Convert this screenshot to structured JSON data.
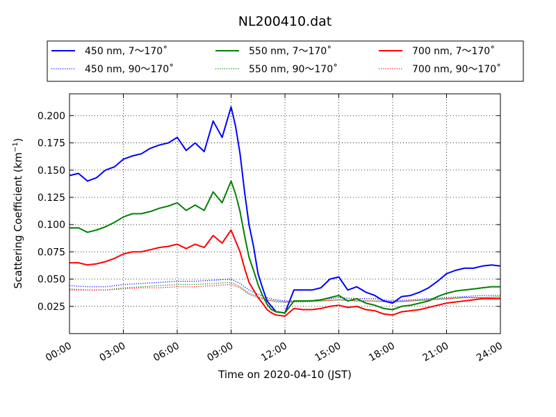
{
  "chart_data": {
    "type": "line",
    "title": "NL200410.dat",
    "xlabel": "Time on 2020-04-10 (JST)",
    "ylabel": "Scattering Coefficient (km",
    "ylabel_sup": "−1",
    "ylabel_close": ")",
    "xlim": [
      "00:00",
      "24:00"
    ],
    "ylim": [
      0.0,
      0.22
    ],
    "x_ticks": [
      "00:00",
      "03:00",
      "06:00",
      "09:00",
      "12:00",
      "15:00",
      "18:00",
      "21:00",
      "24:00"
    ],
    "y_ticks": [
      "0.025",
      "0.050",
      "0.075",
      "0.100",
      "0.125",
      "0.150",
      "0.175",
      "0.200"
    ],
    "grid": true,
    "legend_placement": "top-center",
    "series": [
      {
        "name": "450 nm, 7～170˚",
        "color": "#0000ff",
        "style": "solid",
        "x": [
          "00:00",
          "00:30",
          "01:00",
          "01:30",
          "02:00",
          "02:30",
          "03:00",
          "03:30",
          "04:00",
          "04:30",
          "05:00",
          "05:30",
          "06:00",
          "06:30",
          "07:00",
          "07:30",
          "08:00",
          "08:30",
          "09:00",
          "09:15",
          "09:30",
          "09:45",
          "10:00",
          "10:15",
          "10:30",
          "10:45",
          "11:00",
          "11:15",
          "11:30",
          "12:00",
          "12:30",
          "13:00",
          "13:30",
          "14:00",
          "14:30",
          "15:00",
          "15:30",
          "16:00",
          "16:30",
          "17:00",
          "17:30",
          "18:00",
          "18:30",
          "19:00",
          "19:30",
          "20:00",
          "20:30",
          "21:00",
          "21:30",
          "22:00",
          "22:30",
          "23:00",
          "23:30",
          "24:00"
        ],
        "y": [
          0.145,
          0.147,
          0.14,
          0.143,
          0.15,
          0.153,
          0.16,
          0.163,
          0.165,
          0.17,
          0.173,
          0.175,
          0.18,
          0.168,
          0.175,
          0.167,
          0.195,
          0.18,
          0.208,
          0.19,
          0.165,
          0.13,
          0.1,
          0.08,
          0.055,
          0.042,
          0.03,
          0.025,
          0.02,
          0.019,
          0.04,
          0.04,
          0.04,
          0.042,
          0.05,
          0.052,
          0.04,
          0.043,
          0.038,
          0.035,
          0.03,
          0.028,
          0.034,
          0.035,
          0.038,
          0.042,
          0.048,
          0.055,
          0.058,
          0.06,
          0.06,
          0.062,
          0.063,
          0.062
        ]
      },
      {
        "name": "550 nm, 7～170˚",
        "color": "#008000",
        "style": "solid",
        "x": [
          "00:00",
          "00:30",
          "01:00",
          "01:30",
          "02:00",
          "02:30",
          "03:00",
          "03:30",
          "04:00",
          "04:30",
          "05:00",
          "05:30",
          "06:00",
          "06:30",
          "07:00",
          "07:30",
          "08:00",
          "08:30",
          "09:00",
          "09:15",
          "09:30",
          "09:45",
          "10:00",
          "10:15",
          "10:30",
          "10:45",
          "11:00",
          "11:15",
          "11:30",
          "12:00",
          "12:30",
          "13:00",
          "13:30",
          "14:00",
          "14:30",
          "15:00",
          "15:30",
          "16:00",
          "16:30",
          "17:00",
          "17:30",
          "18:00",
          "18:30",
          "19:00",
          "19:30",
          "20:00",
          "20:30",
          "21:00",
          "21:30",
          "22:00",
          "22:30",
          "23:00",
          "23:30",
          "24:00"
        ],
        "y": [
          0.097,
          0.097,
          0.093,
          0.095,
          0.098,
          0.102,
          0.107,
          0.11,
          0.11,
          0.112,
          0.115,
          0.117,
          0.12,
          0.113,
          0.118,
          0.113,
          0.13,
          0.12,
          0.14,
          0.128,
          0.112,
          0.09,
          0.07,
          0.058,
          0.045,
          0.035,
          0.027,
          0.022,
          0.02,
          0.019,
          0.03,
          0.03,
          0.03,
          0.031,
          0.033,
          0.035,
          0.03,
          0.032,
          0.028,
          0.026,
          0.023,
          0.022,
          0.025,
          0.026,
          0.028,
          0.03,
          0.034,
          0.037,
          0.039,
          0.04,
          0.041,
          0.042,
          0.043,
          0.043
        ]
      },
      {
        "name": "700 nm, 7～170˚",
        "color": "#ff0000",
        "style": "solid",
        "x": [
          "00:00",
          "00:30",
          "01:00",
          "01:30",
          "02:00",
          "02:30",
          "03:00",
          "03:30",
          "04:00",
          "04:30",
          "05:00",
          "05:30",
          "06:00",
          "06:30",
          "07:00",
          "07:30",
          "08:00",
          "08:30",
          "09:00",
          "09:15",
          "09:30",
          "09:45",
          "10:00",
          "10:15",
          "10:30",
          "10:45",
          "11:00",
          "11:15",
          "11:30",
          "12:00",
          "12:30",
          "13:00",
          "13:30",
          "14:00",
          "14:30",
          "15:00",
          "15:30",
          "16:00",
          "16:30",
          "17:00",
          "17:30",
          "18:00",
          "18:30",
          "19:00",
          "19:30",
          "20:00",
          "20:30",
          "21:00",
          "21:30",
          "22:00",
          "22:30",
          "23:00",
          "23:30",
          "24:00"
        ],
        "y": [
          0.065,
          0.065,
          0.063,
          0.064,
          0.066,
          0.069,
          0.073,
          0.075,
          0.075,
          0.077,
          0.079,
          0.08,
          0.082,
          0.078,
          0.082,
          0.079,
          0.09,
          0.083,
          0.095,
          0.085,
          0.075,
          0.06,
          0.047,
          0.04,
          0.033,
          0.028,
          0.022,
          0.019,
          0.017,
          0.016,
          0.023,
          0.022,
          0.022,
          0.023,
          0.025,
          0.026,
          0.024,
          0.025,
          0.022,
          0.021,
          0.018,
          0.017,
          0.02,
          0.021,
          0.022,
          0.024,
          0.026,
          0.028,
          0.029,
          0.03,
          0.031,
          0.032,
          0.032,
          0.032
        ]
      },
      {
        "name": "450 nm, 90～170˚",
        "color": "#0000ff",
        "style": "dotted",
        "x": [
          "00:00",
          "01:00",
          "02:00",
          "03:00",
          "04:00",
          "05:00",
          "06:00",
          "07:00",
          "08:00",
          "09:00",
          "09:30",
          "10:00",
          "10:30",
          "11:00",
          "11:30",
          "12:00",
          "13:00",
          "14:00",
          "15:00",
          "16:00",
          "17:00",
          "18:00",
          "19:00",
          "20:00",
          "21:00",
          "22:00",
          "23:00",
          "24:00"
        ],
        "y": [
          0.044,
          0.043,
          0.043,
          0.045,
          0.046,
          0.047,
          0.048,
          0.048,
          0.049,
          0.05,
          0.046,
          0.04,
          0.036,
          0.033,
          0.031,
          0.03,
          0.03,
          0.031,
          0.033,
          0.032,
          0.032,
          0.03,
          0.031,
          0.032,
          0.033,
          0.034,
          0.035,
          0.035
        ]
      },
      {
        "name": "550 nm, 90～170˚",
        "color": "#008000",
        "style": "dotted",
        "x": [
          "00:00",
          "01:00",
          "02:00",
          "03:00",
          "04:00",
          "05:00",
          "06:00",
          "07:00",
          "08:00",
          "09:00",
          "09:30",
          "10:00",
          "10:30",
          "11:00",
          "11:30",
          "12:00",
          "13:00",
          "14:00",
          "15:00",
          "16:00",
          "17:00",
          "18:00",
          "19:00",
          "20:00",
          "21:00",
          "22:00",
          "23:00",
          "24:00"
        ],
        "y": [
          0.041,
          0.04,
          0.04,
          0.042,
          0.043,
          0.044,
          0.045,
          0.045,
          0.046,
          0.047,
          0.043,
          0.037,
          0.034,
          0.031,
          0.029,
          0.029,
          0.029,
          0.03,
          0.031,
          0.03,
          0.03,
          0.029,
          0.03,
          0.031,
          0.032,
          0.033,
          0.033,
          0.034
        ]
      },
      {
        "name": "700 nm, 90～170˚",
        "color": "#ff0000",
        "style": "dotted",
        "x": [
          "00:00",
          "01:00",
          "02:00",
          "03:00",
          "04:00",
          "05:00",
          "06:00",
          "07:00",
          "08:00",
          "09:00",
          "09:30",
          "10:00",
          "10:30",
          "11:00",
          "11:30",
          "12:00",
          "13:00",
          "14:00",
          "15:00",
          "16:00",
          "17:00",
          "18:00",
          "19:00",
          "20:00",
          "21:00",
          "22:00",
          "23:00",
          "24:00"
        ],
        "y": [
          0.04,
          0.04,
          0.04,
          0.041,
          0.042,
          0.042,
          0.043,
          0.043,
          0.044,
          0.045,
          0.042,
          0.036,
          0.033,
          0.031,
          0.03,
          0.029,
          0.03,
          0.03,
          0.031,
          0.03,
          0.03,
          0.029,
          0.03,
          0.031,
          0.032,
          0.033,
          0.033,
          0.033
        ]
      }
    ]
  }
}
